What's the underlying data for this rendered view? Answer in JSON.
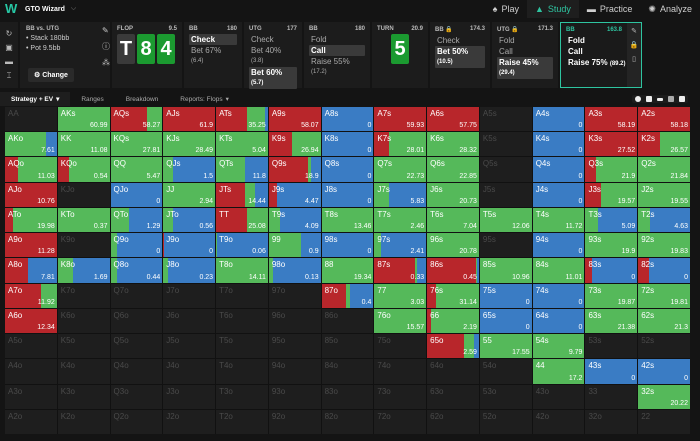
{
  "app": {
    "title": "GTO Wizard",
    "logo": "W",
    "nav": [
      {
        "label": "Play",
        "icon": "♠"
      },
      {
        "label": "Study",
        "icon": "🎓",
        "active": true
      },
      {
        "label": "Practice",
        "icon": "🎮"
      },
      {
        "label": "Analyze",
        "icon": "✺"
      }
    ]
  },
  "colors": {
    "raise": "#b8262b",
    "call": "#55b95a",
    "fold": "#3a7cc4",
    "accent": "#2ec4a0",
    "empty": "#1e1e1e"
  },
  "info": {
    "header": "BB vs. UTG",
    "stack": "• Stack 180bb",
    "pot": "• Pot 9.5bb",
    "change_label": "⚙ Change"
  },
  "flop": {
    "label": "FLOP",
    "pot": "9.5",
    "cards": [
      {
        "rank": "T",
        "suit": "s"
      },
      {
        "rank": "8",
        "suit": "c"
      },
      {
        "rank": "4",
        "suit": "c"
      }
    ]
  },
  "turn": {
    "label": "TURN",
    "pot": "20.9",
    "card": {
      "rank": "5",
      "suit": "c"
    }
  },
  "nodes": [
    {
      "player": "BB",
      "stack": "180",
      "options": [
        {
          "label": "Check",
          "sel": true
        },
        {
          "label": "Bet 67%",
          "amt": "(6.4)"
        }
      ]
    },
    {
      "player": "UTG",
      "stack": "177",
      "options": [
        {
          "label": "Check"
        },
        {
          "label": "Bet 40%",
          "amt": "(3.8)"
        },
        {
          "label": "Bet 60%",
          "amt": "(5.7)",
          "sel": true
        }
      ]
    },
    {
      "player": "BB",
      "stack": "180",
      "options": [
        {
          "label": "Fold"
        },
        {
          "label": "Call",
          "sel": true
        },
        {
          "label": "Raise 55%",
          "amt": "(17.2)"
        }
      ]
    },
    {
      "player": "BB 🔒",
      "stack": "174.3",
      "options": [
        {
          "label": "Check"
        },
        {
          "label": "Bet 50%",
          "amt": "(10.5)",
          "sel": true
        }
      ]
    },
    {
      "player": "UTG 🔒",
      "stack": "171.3",
      "options": [
        {
          "label": "Fold"
        },
        {
          "label": "Call"
        },
        {
          "label": "Raise 45%",
          "amt": "(29.4)",
          "sel": true
        }
      ]
    }
  ],
  "current": {
    "player": "BB",
    "stack": "163.8",
    "options": [
      {
        "label": "Fold"
      },
      {
        "label": "Call"
      },
      {
        "label": "Raise 75%",
        "amt": "(89.2)"
      }
    ]
  },
  "tabs": [
    {
      "label": "Strategy + EV",
      "active": true,
      "dropdown": true
    },
    {
      "label": "Ranges"
    },
    {
      "label": "Breakdown"
    },
    {
      "label": "Reports: Flops",
      "dropdown": true
    }
  ],
  "grid": [
    [
      [
        "AA"
      ],
      [
        "AKs",
        60.99,
        0,
        100,
        0
      ],
      [
        "AQs",
        58.27,
        70,
        30,
        0
      ],
      [
        "AJs",
        61.9,
        100,
        0,
        0
      ],
      [
        "ATs",
        35.25,
        60,
        35,
        5
      ],
      [
        "A9s",
        58.07,
        100,
        0,
        0
      ],
      [
        "A8s",
        0,
        0,
        0,
        100
      ],
      [
        "A7s",
        59.93,
        100,
        0,
        0
      ],
      [
        "A6s",
        57.75,
        100,
        0,
        0
      ],
      [
        "A5s"
      ],
      [
        "A4s",
        0,
        0,
        0,
        100
      ],
      [
        "A3s",
        58.19,
        100,
        0,
        0
      ],
      [
        "A2s",
        58.18,
        100,
        0,
        0
      ]
    ],
    [
      [
        "AKo",
        7.61,
        0,
        80,
        20
      ],
      [
        "KK",
        11.08,
        0,
        100,
        0
      ],
      [
        "KQs",
        27.81,
        0,
        100,
        0
      ],
      [
        "KJs",
        28.49,
        0,
        100,
        0
      ],
      [
        "KTs",
        5.04,
        0,
        100,
        0
      ],
      [
        "K9s",
        26.94,
        45,
        55,
        0
      ],
      [
        "K8s",
        0,
        0,
        0,
        100
      ],
      [
        "K7s",
        28.01,
        28,
        72,
        0
      ],
      [
        "K6s",
        28.32,
        0,
        100,
        0
      ],
      [
        "K5s"
      ],
      [
        "K4s",
        0,
        0,
        0,
        100
      ],
      [
        "K3s",
        27.52,
        100,
        0,
        0
      ],
      [
        "K2s",
        26.57,
        42,
        58,
        0
      ]
    ],
    [
      [
        "AQo",
        11.03,
        25,
        75,
        0
      ],
      [
        "KQo",
        0.54,
        22,
        78,
        0
      ],
      [
        "QQ",
        5.47,
        0,
        100,
        0
      ],
      [
        "QJs",
        1.5,
        0,
        18,
        82
      ],
      [
        "QTs",
        11.8,
        0,
        55,
        45
      ],
      [
        "Q9s",
        18.9,
        76,
        6,
        18
      ],
      [
        "Q8s",
        0,
        0,
        0,
        100
      ],
      [
        "Q7s",
        22.73,
        0,
        100,
        0
      ],
      [
        "Q6s",
        22.85,
        0,
        100,
        0
      ],
      [
        "Q5s"
      ],
      [
        "Q4s",
        0,
        0,
        0,
        100
      ],
      [
        "Q3s",
        21.9,
        20,
        80,
        0
      ],
      [
        "Q2s",
        21.84,
        0,
        100,
        0
      ]
    ],
    [
      [
        "AJo",
        10.76,
        100,
        0,
        0
      ],
      [
        "KJo"
      ],
      [
        "QJo",
        0,
        0,
        0,
        100
      ],
      [
        "JJ",
        2.94,
        0,
        100,
        0
      ],
      [
        "JTs",
        14.44,
        55,
        20,
        25
      ],
      [
        "J9s",
        4.47,
        15,
        0,
        85
      ],
      [
        "J8s",
        0,
        0,
        0,
        100
      ],
      [
        "J7s",
        5.83,
        0,
        28,
        72
      ],
      [
        "J6s",
        20.73,
        0,
        100,
        0
      ],
      [
        "J5s"
      ],
      [
        "J4s",
        0,
        0,
        0,
        100
      ],
      [
        "J3s",
        19.57,
        30,
        70,
        0
      ],
      [
        "J2s",
        19.55,
        0,
        100,
        0
      ]
    ],
    [
      [
        "ATo",
        19.98,
        15,
        85,
        0
      ],
      [
        "KTo",
        0.37,
        0,
        100,
        0
      ],
      [
        "QTo",
        1.29,
        0,
        35,
        65
      ],
      [
        "JTo",
        0.56,
        0,
        18,
        82
      ],
      [
        "TT",
        25.08,
        60,
        40,
        0
      ],
      [
        "T9s",
        4.09,
        0,
        22,
        78
      ],
      [
        "T8s",
        13.46,
        0,
        100,
        0
      ],
      [
        "T7s",
        2.46,
        0,
        100,
        0
      ],
      [
        "T6s",
        7.04,
        0,
        100,
        0
      ],
      [
        "T5s",
        12.06,
        0,
        100,
        0
      ],
      [
        "T4s",
        11.72,
        0,
        100,
        0
      ],
      [
        "T3s",
        5.09,
        0,
        25,
        75
      ],
      [
        "T2s",
        4.63,
        0,
        22,
        78
      ]
    ],
    [
      [
        "A9o",
        11.28,
        100,
        0,
        0
      ],
      [
        "K9o"
      ],
      [
        "Q9o",
        0,
        0,
        12,
        88
      ],
      [
        "J9o",
        0,
        2,
        0,
        98
      ],
      [
        "T9o",
        0.06,
        0,
        2,
        98
      ],
      [
        "99",
        0.9,
        0,
        62,
        38
      ],
      [
        "98s",
        0,
        0,
        0,
        100
      ],
      [
        "97s",
        2.41,
        0,
        12,
        88
      ],
      [
        "96s",
        20.78,
        0,
        100,
        0
      ],
      [
        "95s"
      ],
      [
        "94s",
        0,
        0,
        0,
        100
      ],
      [
        "93s",
        19.9,
        0,
        100,
        0
      ],
      [
        "92s",
        19.83,
        0,
        100,
        0
      ]
    ],
    [
      [
        "A8o",
        7.81,
        45,
        0,
        55
      ],
      [
        "K8o",
        1.69,
        0,
        30,
        70
      ],
      [
        "Q8o",
        0.44,
        0,
        12,
        88
      ],
      [
        "J8o",
        0.23,
        0,
        10,
        90
      ],
      [
        "T8o",
        14.11,
        0,
        100,
        0
      ],
      [
        "98o",
        0.13,
        0,
        8,
        92
      ],
      [
        "88",
        19.34,
        0,
        100,
        0
      ],
      [
        "87s",
        0.33,
        78,
        5,
        17
      ],
      [
        "86s",
        0.45,
        94,
        2,
        4
      ],
      [
        "85s",
        10.96,
        0,
        100,
        0
      ],
      [
        "84s",
        11.01,
        0,
        100,
        0
      ],
      [
        "83s",
        0,
        12,
        0,
        88
      ],
      [
        "82s",
        0,
        20,
        0,
        80
      ]
    ],
    [
      [
        "A7o",
        11.92,
        70,
        30,
        0
      ],
      [
        "K7o"
      ],
      [
        "Q7o"
      ],
      [
        "J7o"
      ],
      [
        "T7o"
      ],
      [
        "97o"
      ],
      [
        "87o",
        0.4,
        48,
        6,
        46
      ],
      [
        "77",
        3.03,
        0,
        100,
        0
      ],
      [
        "76s",
        31.14,
        18,
        82,
        0
      ],
      [
        "75s",
        0,
        0,
        0,
        100
      ],
      [
        "74s",
        0,
        0,
        0,
        100
      ],
      [
        "73s",
        19.87,
        0,
        100,
        0
      ],
      [
        "72s",
        19.81,
        0,
        100,
        0
      ]
    ],
    [
      [
        "A6o",
        12.34,
        100,
        0,
        0
      ],
      [
        "K6o"
      ],
      [
        "Q6o"
      ],
      [
        "J6o"
      ],
      [
        "T6o"
      ],
      [
        "96o"
      ],
      [
        "86o"
      ],
      [
        "76o",
        15.57,
        0,
        100,
        0
      ],
      [
        "66",
        2.19,
        8,
        92,
        0
      ],
      [
        "65s",
        0,
        0,
        0,
        100
      ],
      [
        "64s",
        0,
        0,
        0,
        100
      ],
      [
        "63s",
        21.38,
        0,
        100,
        0
      ],
      [
        "62s",
        21.3,
        0,
        100,
        0
      ]
    ],
    [
      [
        "A5o"
      ],
      [
        "K5o"
      ],
      [
        "Q5o"
      ],
      [
        "J5o"
      ],
      [
        "T5o"
      ],
      [
        "95o"
      ],
      [
        "85o"
      ],
      [
        "75o"
      ],
      [
        "65o",
        2.59,
        72,
        18,
        10
      ],
      [
        "55",
        17.55,
        0,
        100,
        0
      ],
      [
        "54s",
        9.79,
        0,
        100,
        0
      ],
      [
        "53s"
      ],
      [
        "52s"
      ]
    ],
    [
      [
        "A4o"
      ],
      [
        "K4o"
      ],
      [
        "Q4o"
      ],
      [
        "J4o"
      ],
      [
        "T4o"
      ],
      [
        "94o"
      ],
      [
        "84o"
      ],
      [
        "74o"
      ],
      [
        "64o"
      ],
      [
        "54o"
      ],
      [
        "44",
        17.2,
        0,
        100,
        0
      ],
      [
        "43s",
        0,
        0,
        0,
        100
      ],
      [
        "42s",
        0,
        0,
        0,
        100
      ]
    ],
    [
      [
        "A3o"
      ],
      [
        "K3o"
      ],
      [
        "Q3o"
      ],
      [
        "J3o"
      ],
      [
        "T3o"
      ],
      [
        "93o"
      ],
      [
        "83o"
      ],
      [
        "73o"
      ],
      [
        "63o"
      ],
      [
        "53o"
      ],
      [
        "43o"
      ],
      [
        "33"
      ],
      [
        "32s",
        20.22,
        0,
        100,
        0
      ]
    ],
    [
      [
        "A2o"
      ],
      [
        "K2o"
      ],
      [
        "Q2o"
      ],
      [
        "J2o"
      ],
      [
        "T2o"
      ],
      [
        "92o"
      ],
      [
        "82o"
      ],
      [
        "72o"
      ],
      [
        "62o"
      ],
      [
        "52o"
      ],
      [
        "42o"
      ],
      [
        "32o"
      ],
      [
        "22"
      ]
    ]
  ]
}
